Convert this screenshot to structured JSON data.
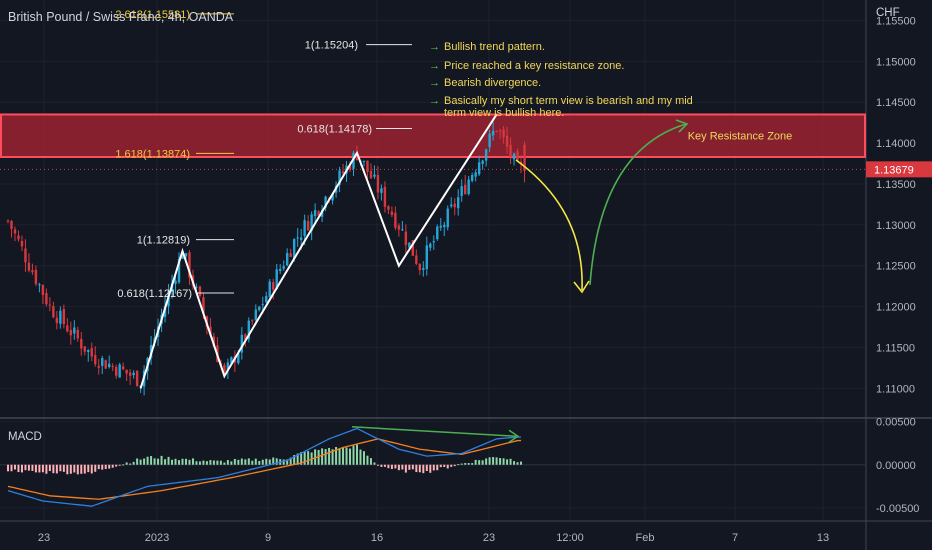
{
  "header": {
    "symbol_title": "British Pound / Swiss Franc, 4h, OANDA",
    "currency": "CHF"
  },
  "colors": {
    "background": "#131722",
    "up": "#26a6d8",
    "down": "#d9383f",
    "zone_fill": "#9b2230",
    "zone_border": "#ff4d5e",
    "fib_label": "#f0c93a",
    "note_arrow": "#5ccf5c",
    "note_text": "#f0d75a",
    "macd_line": "#2f7fe0",
    "signal_line": "#f5801e",
    "hist_up": "#8fd6a8",
    "hist_down": "#ffb3b8"
  },
  "chart_data": [
    {
      "type": "candlestick",
      "title": "British Pound / Swiss Franc, 4h, OANDA",
      "ylabel": "CHF",
      "ylim": [
        1.1065,
        1.1575
      ],
      "y_ticks": [
        "1.15500",
        "1.15000",
        "1.14500",
        "1.14000",
        "1.13500",
        "1.13000",
        "1.12500",
        "1.12000",
        "1.11500",
        "1.11000"
      ],
      "x_ticks": [
        "23",
        "2023",
        "9",
        "16",
        "23",
        "12:00",
        "Feb",
        "7",
        "13"
      ],
      "last_price": "1.13679",
      "key_points": [
        {
          "candle": 0,
          "price": 1.1305
        },
        {
          "candle": 12,
          "price": 1.12
        },
        {
          "candle": 24,
          "price": 1.114
        },
        {
          "candle": 38,
          "price": 1.111
        },
        {
          "candle": 50,
          "price": 1.1268
        },
        {
          "candle": 62,
          "price": 1.1115
        },
        {
          "candle": 82,
          "price": 1.128
        },
        {
          "candle": 100,
          "price": 1.1388
        },
        {
          "candle": 112,
          "price": 1.13
        },
        {
          "candle": 118,
          "price": 1.125
        },
        {
          "candle": 130,
          "price": 1.134
        },
        {
          "candle": 140,
          "price": 1.142
        },
        {
          "candle": 146,
          "price": 1.1368
        }
      ],
      "fib_levels": [
        {
          "label": "2.618(1.15581)",
          "price": 1.15581
        },
        {
          "label": "1(1.15204)",
          "price": 1.15204
        },
        {
          "label": "0.618(1.14178)",
          "price": 1.14178
        },
        {
          "label": "1.618(1.13874)",
          "price": 1.13874
        },
        {
          "label": "1(1.12819)",
          "price": 1.12819
        },
        {
          "label": "0.618(1.12167)",
          "price": 1.12167
        }
      ],
      "resistance_zone": {
        "label": "Key Resistance Zone",
        "from": 1.1383,
        "to": 1.1435
      },
      "zigzag": [
        {
          "candle": 38,
          "price": 1.11
        },
        {
          "candle": 50,
          "price": 1.1268
        },
        {
          "candle": 62,
          "price": 1.1115
        },
        {
          "candle": 100,
          "price": 1.1388
        },
        {
          "candle": 112,
          "price": 1.125
        },
        {
          "candle": 140,
          "price": 1.1435
        }
      ],
      "notes": [
        "Bullish trend pattern.",
        "Price reached a key resistance zone.",
        "Bearish divergence.",
        "Basically my short term view is bearish and my mid",
        "term view is bullish here."
      ]
    },
    {
      "type": "line",
      "title": "MACD",
      "ylim": [
        -0.0064,
        0.0053
      ],
      "y_ticks": [
        "0.00500",
        "0.00000",
        "-0.00500"
      ],
      "macd_points": [
        {
          "candle": 0,
          "value": -0.003
        },
        {
          "candle": 10,
          "value": -0.0042
        },
        {
          "candle": 24,
          "value": -0.0048
        },
        {
          "candle": 40,
          "value": -0.0025
        },
        {
          "candle": 60,
          "value": -0.0015
        },
        {
          "candle": 80,
          "value": 0.0005
        },
        {
          "candle": 92,
          "value": 0.003
        },
        {
          "candle": 100,
          "value": 0.0042
        },
        {
          "candle": 112,
          "value": 0.0018
        },
        {
          "candle": 120,
          "value": 0.001
        },
        {
          "candle": 130,
          "value": 0.0013
        },
        {
          "candle": 140,
          "value": 0.003
        },
        {
          "candle": 146,
          "value": 0.0032
        }
      ],
      "signal_points": [
        {
          "candle": 0,
          "value": -0.0025
        },
        {
          "candle": 12,
          "value": -0.0036
        },
        {
          "candle": 26,
          "value": -0.004
        },
        {
          "candle": 44,
          "value": -0.003
        },
        {
          "candle": 64,
          "value": -0.0015
        },
        {
          "candle": 84,
          "value": 0.0002
        },
        {
          "candle": 96,
          "value": 0.002
        },
        {
          "candle": 106,
          "value": 0.003
        },
        {
          "candle": 118,
          "value": 0.0018
        },
        {
          "candle": 130,
          "value": 0.0012
        },
        {
          "candle": 142,
          "value": 0.0024
        },
        {
          "candle": 146,
          "value": 0.0028
        }
      ]
    }
  ]
}
